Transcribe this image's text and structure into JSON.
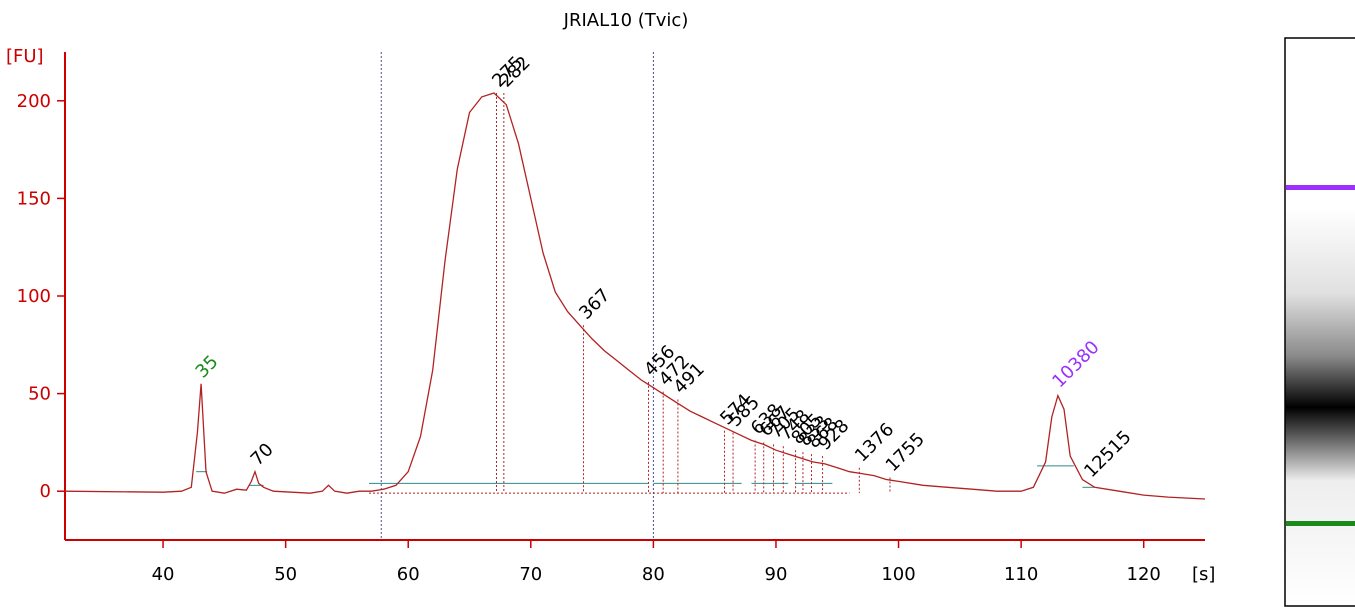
{
  "chart_data": {
    "type": "line",
    "title": "JRIAL10 (Tvic)",
    "xlabel": "[s]",
    "ylabel": "[FU]",
    "xlim": [
      32,
      125
    ],
    "ylim": [
      -25,
      225
    ],
    "x_ticks": [
      40,
      50,
      60,
      70,
      80,
      90,
      100,
      110,
      120
    ],
    "y_ticks": [
      0,
      50,
      100,
      150,
      200
    ],
    "region_markers_x": [
      57.8,
      80.0
    ],
    "series": [
      {
        "x": [
          32,
          40,
          41.5,
          42.3,
          42.8,
          43.1,
          43.5,
          44,
          45,
          46,
          46.8,
          47.2,
          47.5,
          47.8,
          48.2,
          49,
          52,
          53,
          53.5,
          54,
          55,
          56,
          57,
          58,
          59,
          60,
          61,
          62,
          63,
          64,
          65,
          66,
          67,
          68,
          69,
          70,
          71,
          72,
          73,
          74,
          75,
          76,
          77,
          78,
          79,
          80,
          81,
          82,
          83,
          84,
          85,
          86,
          87,
          88,
          89,
          90,
          91,
          92,
          93,
          94,
          95,
          96,
          97,
          98,
          99,
          100,
          102,
          104,
          106,
          108,
          110,
          111,
          112,
          112.5,
          113,
          113.5,
          114,
          115,
          116,
          118,
          120,
          122,
          125
        ],
        "y": [
          0,
          -0.5,
          0,
          2,
          30,
          55,
          10,
          0,
          -1,
          1,
          0.5,
          5,
          10,
          4,
          2,
          0,
          -1,
          0,
          3,
          0,
          -1,
          0,
          0,
          1,
          3,
          10,
          28,
          62,
          118,
          165,
          194,
          202,
          204,
          198,
          178,
          150,
          122,
          102,
          92,
          85,
          78,
          72,
          67,
          62,
          57,
          53,
          49,
          45,
          41,
          38,
          35,
          32,
          29,
          26,
          24,
          21,
          19,
          17,
          15,
          14,
          12,
          10,
          9,
          8,
          6,
          5,
          3,
          2,
          1,
          0,
          0,
          2,
          15,
          38,
          49,
          42,
          18,
          6,
          2,
          0,
          -2,
          -3,
          -4
        ]
      }
    ],
    "peaks": [
      {
        "label": "35",
        "x": 43.0,
        "y": 55,
        "color": "#1a8a1a"
      },
      {
        "label": "70",
        "x": 47.5,
        "y": 10,
        "color": "#000000"
      },
      {
        "label": "275",
        "x": 67.2,
        "y": 204,
        "color": "#000000"
      },
      {
        "label": "282",
        "x": 67.8,
        "y": 204,
        "color": "#000000"
      },
      {
        "label": "367",
        "x": 74.3,
        "y": 85,
        "color": "#000000"
      },
      {
        "label": "456",
        "x": 79.6,
        "y": 56,
        "color": "#000000"
      },
      {
        "label": "472",
        "x": 80.8,
        "y": 51,
        "color": "#000000"
      },
      {
        "label": "491",
        "x": 82.0,
        "y": 47,
        "color": "#000000"
      },
      {
        "label": "574",
        "x": 85.8,
        "y": 31,
        "color": "#000000"
      },
      {
        "label": "585",
        "x": 86.5,
        "y": 30,
        "color": "#000000"
      },
      {
        "label": "638",
        "x": 88.3,
        "y": 26,
        "color": "#000000"
      },
      {
        "label": "667",
        "x": 89.0,
        "y": 25,
        "color": "#000000"
      },
      {
        "label": "705",
        "x": 89.8,
        "y": 24,
        "color": "#000000"
      },
      {
        "label": "748",
        "x": 90.6,
        "y": 23,
        "color": "#000000"
      },
      {
        "label": "805",
        "x": 91.6,
        "y": 21,
        "color": "#000000"
      },
      {
        "label": "833",
        "x": 92.2,
        "y": 20,
        "color": "#000000"
      },
      {
        "label": "868",
        "x": 92.9,
        "y": 19,
        "color": "#000000"
      },
      {
        "label": "928",
        "x": 93.8,
        "y": 18,
        "color": "#000000"
      },
      {
        "label": "1376",
        "x": 96.8,
        "y": 12,
        "color": "#000000"
      },
      {
        "label": "1755",
        "x": 99.3,
        "y": 7,
        "color": "#000000"
      },
      {
        "label": "10380",
        "x": 112.9,
        "y": 50,
        "color": "#9b30ff"
      },
      {
        "label": "12515",
        "x": 115.5,
        "y": 4,
        "color": "#000000"
      }
    ],
    "baselines": [
      {
        "from": 42.7,
        "to": 43.6,
        "y": 10
      },
      {
        "from": 47.0,
        "to": 48.2,
        "y": 3
      },
      {
        "from": 56.8,
        "to": 79.6,
        "y": 4
      },
      {
        "from": 80.0,
        "to": 87.2,
        "y": 4
      },
      {
        "from": 88.0,
        "to": 91.0,
        "y": 4
      },
      {
        "from": 91.6,
        "to": 94.6,
        "y": 4
      },
      {
        "from": 111.3,
        "to": 114.3,
        "y": 13
      },
      {
        "from": 115.0,
        "to": 116.0,
        "y": 2
      }
    ],
    "colors": {
      "axis": "#cc0000",
      "trace": "#b22222",
      "baseline": "#2e8b8b",
      "marker": "#4a4a9a"
    }
  },
  "gel_lane": {
    "colors": {
      "upper_marker": "#9b30ff",
      "lower_marker": "#1a8a1a"
    }
  }
}
